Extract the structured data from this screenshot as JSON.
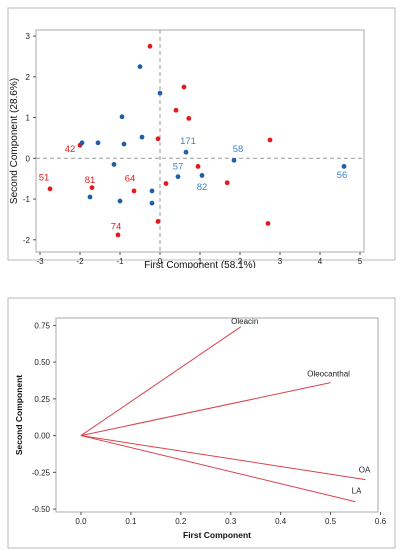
{
  "colors": {
    "red": "#e31a1c",
    "blue": "#1f5fa8",
    "label_red": "#e02020",
    "label_blue": "#3a86c8",
    "ref_line": "#9a9a9a",
    "vector": "#d9434a",
    "frame": "#b8b8b8"
  },
  "chart_data": [
    {
      "type": "scatter",
      "title": "",
      "xlabel": "First Component (58.1%)",
      "ylabel": "Second Component (28.6%)",
      "xlim": [
        -3.1,
        5.1
      ],
      "ylim": [
        -2.3,
        3.15
      ],
      "xticks": [
        -3,
        -2,
        -1,
        0,
        1,
        2,
        3,
        4,
        5
      ],
      "yticks": [
        -2,
        -1,
        0,
        1,
        2,
        3
      ],
      "grid": false,
      "reference_lines": {
        "x": 0,
        "y": 0,
        "style": "dashed"
      },
      "series": [
        {
          "color_key": "red",
          "points": [
            {
              "x": -0.25,
              "y": 2.75
            },
            {
              "x": 0.6,
              "y": 1.75
            },
            {
              "x": 0.4,
              "y": 1.18
            },
            {
              "x": 0.72,
              "y": 0.98
            },
            {
              "x": 2.75,
              "y": 0.45
            },
            {
              "x": -0.05,
              "y": 0.48
            },
            {
              "x": -2.0,
              "y": 0.32
            },
            {
              "x": 0.95,
              "y": -0.2
            },
            {
              "x": 0.15,
              "y": -0.62
            },
            {
              "x": 1.68,
              "y": -0.6
            },
            {
              "x": -2.75,
              "y": -0.75
            },
            {
              "x": -1.7,
              "y": -0.72
            },
            {
              "x": -0.65,
              "y": -0.8
            },
            {
              "x": 2.7,
              "y": -1.6
            },
            {
              "x": -0.05,
              "y": -1.55
            },
            {
              "x": -1.05,
              "y": -1.88
            }
          ]
        },
        {
          "color_key": "blue",
          "points": [
            {
              "x": -0.5,
              "y": 2.25
            },
            {
              "x": 0.0,
              "y": 1.6
            },
            {
              "x": -0.95,
              "y": 1.02
            },
            {
              "x": -0.45,
              "y": 0.52
            },
            {
              "x": -1.95,
              "y": 0.38
            },
            {
              "x": -1.55,
              "y": 0.38
            },
            {
              "x": -0.9,
              "y": 0.35
            },
            {
              "x": 0.65,
              "y": 0.15
            },
            {
              "x": 1.85,
              "y": -0.05
            },
            {
              "x": 4.6,
              "y": -0.2
            },
            {
              "x": -1.15,
              "y": -0.15
            },
            {
              "x": 0.45,
              "y": -0.45
            },
            {
              "x": 1.05,
              "y": -0.42
            },
            {
              "x": -0.2,
              "y": -0.8
            },
            {
              "x": -1.75,
              "y": -0.95
            },
            {
              "x": -1.0,
              "y": -1.05
            },
            {
              "x": -0.2,
              "y": -1.1
            }
          ]
        }
      ],
      "point_labels": [
        {
          "text": "42",
          "x": -2.25,
          "y": 0.15,
          "color_key": "label_red"
        },
        {
          "text": "51",
          "x": -2.9,
          "y": -0.55,
          "color_key": "label_red"
        },
        {
          "text": "81",
          "x": -1.75,
          "y": -0.6,
          "color_key": "label_red"
        },
        {
          "text": "64",
          "x": -0.75,
          "y": -0.57,
          "color_key": "label_red"
        },
        {
          "text": "74",
          "x": -1.1,
          "y": -1.75,
          "color_key": "label_red"
        },
        {
          "text": "171",
          "x": 0.7,
          "y": 0.35,
          "color_key": "label_blue"
        },
        {
          "text": "58",
          "x": 1.95,
          "y": 0.15,
          "color_key": "label_blue"
        },
        {
          "text": "56",
          "x": 4.55,
          "y": -0.48,
          "color_key": "label_blue"
        },
        {
          "text": "57",
          "x": 0.45,
          "y": -0.28,
          "color_key": "label_blue"
        },
        {
          "text": "82",
          "x": 1.05,
          "y": -0.78,
          "color_key": "label_blue"
        }
      ]
    },
    {
      "type": "line",
      "title": "",
      "xlabel": "First Component",
      "ylabel": "Second Component",
      "xlim": [
        -0.05,
        0.595
      ],
      "ylim": [
        -0.52,
        0.8
      ],
      "xticks": [
        "0.0",
        "0.1",
        "0.2",
        "0.3",
        "0.4",
        "0.5",
        "0.6"
      ],
      "yticks": [
        "-0.50",
        "-0.25",
        "0.00",
        "0.25",
        "0.50",
        "0.75"
      ],
      "grid": false,
      "vectors": [
        {
          "name": "Oleacin",
          "x": 0.32,
          "y": 0.74
        },
        {
          "name": "Oleocanthal",
          "x": 0.5,
          "y": 0.36
        },
        {
          "name": "OA",
          "x": 0.57,
          "y": -0.3
        },
        {
          "name": "LA",
          "x": 0.55,
          "y": -0.45
        }
      ]
    }
  ]
}
